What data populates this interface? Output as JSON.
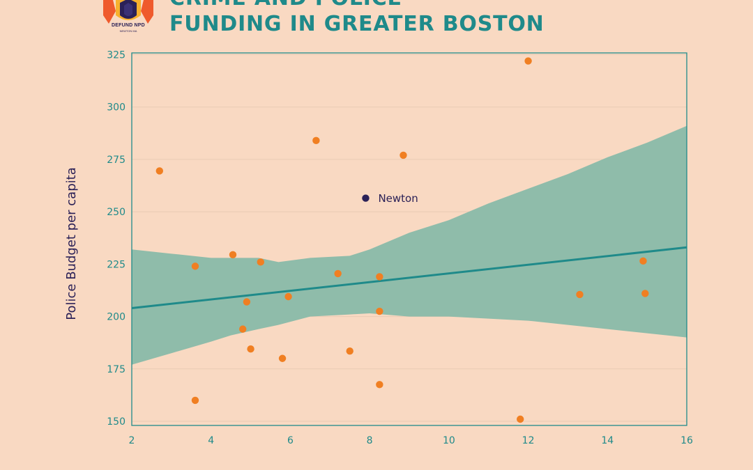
{
  "header": {
    "logo_text": "DEFUND NPD",
    "logo_subtext": "NEWTON MA",
    "title_line1": "CRIME AND POLICE",
    "title_line2": "FUNDING IN GREATER BOSTON"
  },
  "colors": {
    "background": "#f9d9c2",
    "teal": "#1f8a8a",
    "band": "#8fbcaa",
    "point": "#f07f22",
    "highlight": "#2b2157",
    "axis_title": "#2b2157"
  },
  "chart_data": {
    "type": "scatter",
    "title": "CRIME AND POLICE FUNDING IN GREATER BOSTON",
    "xlabel": "",
    "ylabel": "Police Budget per capita",
    "xlim": [
      2,
      16
    ],
    "ylim": [
      150,
      325
    ],
    "xticks": [
      2,
      4,
      6,
      8,
      10,
      12,
      14,
      16
    ],
    "yticks": [
      150,
      175,
      200,
      225,
      250,
      275,
      300,
      325
    ],
    "grid": "horizontal",
    "points": [
      {
        "x": 2.7,
        "y": 269.5
      },
      {
        "x": 3.6,
        "y": 224
      },
      {
        "x": 3.6,
        "y": 160
      },
      {
        "x": 4.55,
        "y": 229.5
      },
      {
        "x": 4.8,
        "y": 194
      },
      {
        "x": 4.9,
        "y": 207
      },
      {
        "x": 5.0,
        "y": 184.5
      },
      {
        "x": 5.25,
        "y": 226
      },
      {
        "x": 5.8,
        "y": 180
      },
      {
        "x": 5.95,
        "y": 209.5
      },
      {
        "x": 6.65,
        "y": 284
      },
      {
        "x": 7.2,
        "y": 220.5
      },
      {
        "x": 7.5,
        "y": 183.5
      },
      {
        "x": 8.25,
        "y": 219
      },
      {
        "x": 8.25,
        "y": 202.5
      },
      {
        "x": 8.25,
        "y": 167.5
      },
      {
        "x": 8.85,
        "y": 277
      },
      {
        "x": 11.8,
        "y": 151
      },
      {
        "x": 12.0,
        "y": 322
      },
      {
        "x": 13.3,
        "y": 210.5
      },
      {
        "x": 14.9,
        "y": 226.5
      },
      {
        "x": 14.95,
        "y": 211
      }
    ],
    "highlight": {
      "x": 7.9,
      "y": 256.5,
      "label": "Newton"
    },
    "trend_line": {
      "x": [
        2,
        16
      ],
      "y": [
        204,
        233
      ]
    },
    "confidence_band": {
      "x": [
        2,
        3,
        4,
        4.5,
        5.2,
        5.7,
        6.5,
        7.5,
        8.0,
        9,
        10,
        11,
        12,
        13,
        14,
        15,
        16
      ],
      "upper": [
        232,
        230,
        228,
        228,
        228,
        226,
        228,
        229,
        232,
        240,
        246,
        254,
        261,
        268,
        276,
        283,
        291
      ],
      "lower": [
        177,
        182.5,
        188,
        191,
        194,
        196,
        200,
        201,
        201.5,
        200,
        200,
        199,
        198,
        196,
        194,
        192,
        190
      ]
    }
  }
}
